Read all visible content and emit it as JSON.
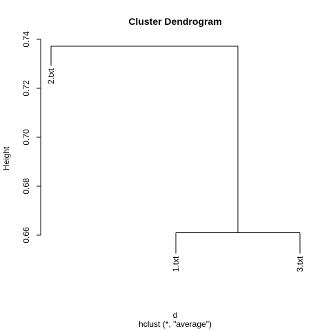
{
  "chart_data": {
    "type": "dendrogram",
    "title": "Cluster Dendrogram",
    "ylabel": "Height",
    "xlabel": "d",
    "sublabel": "hclust (*, \"average\")",
    "ylim": [
      0.66,
      0.74
    ],
    "yticks": [
      0.66,
      0.68,
      0.7,
      0.72,
      0.74
    ],
    "ytick_labels": [
      "0.66",
      "0.68",
      "0.70",
      "0.72",
      "0.74"
    ],
    "leaves": [
      "2.txt",
      "1.txt",
      "3.txt"
    ],
    "merges": [
      {
        "left": "1.txt",
        "right": "3.txt",
        "height": 0.661
      },
      {
        "left": "2.txt",
        "right": "cluster(1.txt,3.txt)",
        "height": 0.7372
      }
    ],
    "leaf_hang": 0.0085
  }
}
